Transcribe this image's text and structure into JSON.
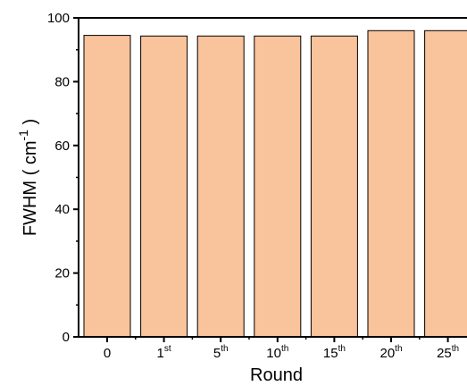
{
  "colors": {
    "bar_fill": "#f9c39b",
    "bar_stroke": "#000000",
    "axis": "#000000"
  },
  "chart_data": {
    "type": "bar",
    "categories": [
      {
        "base": "0",
        "sup": ""
      },
      {
        "base": "1",
        "sup": "st"
      },
      {
        "base": "5",
        "sup": "th"
      },
      {
        "base": "10",
        "sup": "th"
      },
      {
        "base": "15",
        "sup": "th"
      },
      {
        "base": "20",
        "sup": "th"
      },
      {
        "base": "25",
        "sup": "th"
      }
    ],
    "values": [
      94.5,
      94.3,
      94.3,
      94.3,
      94.3,
      96.0,
      96.0
    ],
    "xlabel": "Round",
    "ylabel": {
      "main": "FWHM ( cm",
      "sup": "-1",
      "close": " )"
    },
    "ylim": [
      0,
      100
    ],
    "yticks": [
      0,
      20,
      40,
      60,
      80,
      100
    ],
    "grid": false,
    "legend": "none"
  }
}
